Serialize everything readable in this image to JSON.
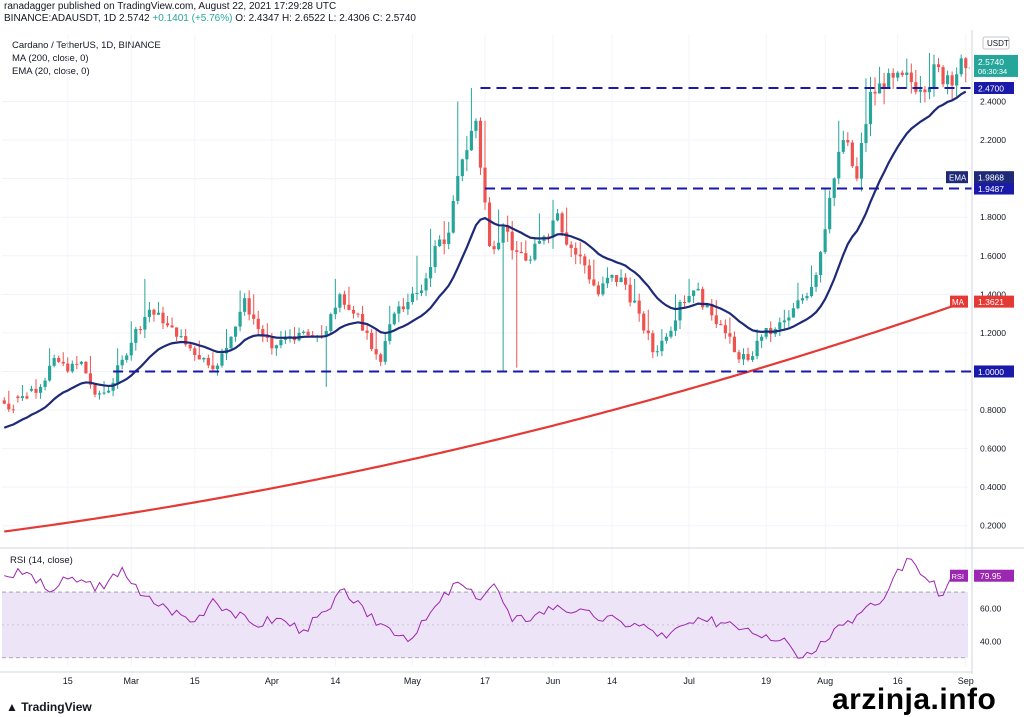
{
  "header": {
    "published": "ranadagger published on TradingView.com, August 22, 2021 17:29:28 UTC",
    "symbol": "BINANCE:ADAUSDT, 1D",
    "price": "2.5742",
    "change": "+0.1401 (+5.76%)",
    "open": "O: 2.4347",
    "high": "H: 2.6522",
    "low": "L: 2.4306",
    "close": "C: 2.5740"
  },
  "legend": {
    "title": "Cardano / TetherUS, 1D, BINANCE",
    "ma": "MA (200, close, 0)",
    "ema": "EMA (20, close, 0)",
    "rsi": "RSI (14, close)"
  },
  "branding": {
    "logo": "TradingView",
    "watermark": "arzinja.info"
  },
  "colors": {
    "up": "#26a69a",
    "down": "#ef5350",
    "ema": "#1e2a78",
    "ma": "#e53935",
    "level_line": "#1a1aaa",
    "rsi": "#9c27b0",
    "rsi_band": "#ede4f7"
  },
  "chart_data": [
    {
      "type": "candlestick",
      "title": "Cardano / TetherUS, 1D, BINANCE",
      "currency": "USDT",
      "ylim": [
        0.1,
        2.75
      ],
      "y_ticks": [
        0.2,
        0.4,
        0.6,
        0.8,
        1.0,
        1.2,
        1.4,
        1.6,
        1.8,
        2.0,
        2.2,
        2.4
      ],
      "y_tick_labels": [
        "0.2000",
        "0.4000",
        "0.6000",
        "0.8000",
        "1.0000",
        "1.2000",
        "1.4000",
        "1.6000",
        "1.8000",
        "2.0000",
        "2.2000",
        "2.4000"
      ],
      "x_tick_labels": [
        "15",
        "Mar",
        "15",
        "Apr",
        "14",
        "May",
        "17",
        "Jun",
        "14",
        "Jul",
        "19",
        "Aug",
        "16",
        "Sep"
      ],
      "x_tick_days": [
        14,
        28,
        42,
        59,
        73,
        90,
        106,
        121,
        134,
        151,
        168,
        181,
        197,
        212
      ],
      "price_label": {
        "value": "2.5740",
        "countdown": "06:30:34"
      },
      "levels": [
        {
          "price": 2.47,
          "label": "2.4700",
          "from_day": 105
        },
        {
          "price": 1.9487,
          "label": "1.9487",
          "from_day": 106
        },
        {
          "price": 1.0,
          "label": "1.0000",
          "from_day": 24
        }
      ],
      "ema20_last": {
        "label": "EMA",
        "value": "1.9868"
      },
      "ma200_last": {
        "label": "MA",
        "value": "1.3621"
      },
      "ohlc_anchors": [
        [
          0.85,
          0.8,
          0.9
        ],
        [
          0.87,
          0.86,
          0.93
        ],
        [
          0.9,
          0.92,
          0.96
        ],
        [
          0.92,
          1.07,
          1.12
        ],
        [
          1.07,
          1.0,
          1.1
        ],
        [
          1.0,
          1.05,
          1.08
        ],
        [
          1.05,
          0.88,
          1.08
        ],
        [
          0.88,
          0.9,
          0.95
        ],
        [
          0.9,
          1.06,
          1.12
        ],
        [
          1.06,
          1.22,
          1.26
        ],
        [
          1.22,
          1.32,
          1.48
        ],
        [
          1.32,
          1.25,
          1.36
        ],
        [
          1.25,
          1.18,
          1.28
        ],
        [
          1.18,
          1.12,
          1.22
        ],
        [
          1.12,
          1.07,
          1.16
        ],
        [
          1.07,
          1.03,
          1.1
        ],
        [
          1.03,
          1.18,
          1.22
        ],
        [
          1.18,
          1.38,
          1.42
        ],
        [
          1.38,
          1.22,
          1.4
        ],
        [
          1.22,
          1.12,
          1.25
        ],
        [
          1.12,
          1.18,
          1.21
        ],
        [
          1.18,
          1.2,
          1.23
        ],
        [
          1.2,
          1.18,
          1.22
        ],
        [
          1.18,
          1.21,
          1.24
        ],
        [
          1.21,
          1.4,
          1.48
        ],
        [
          1.4,
          1.3,
          1.44
        ],
        [
          1.3,
          1.2,
          1.34
        ],
        [
          1.2,
          1.05,
          1.22
        ],
        [
          1.05,
          1.3,
          1.34
        ],
        [
          1.3,
          1.36,
          1.38
        ],
        [
          1.36,
          1.42,
          1.6
        ],
        [
          1.42,
          1.65,
          1.74
        ],
        [
          1.65,
          1.72,
          1.78
        ],
        [
          1.72,
          2.1,
          2.4
        ],
        [
          2.1,
          2.3,
          2.47
        ],
        [
          2.3,
          1.65,
          2.3
        ],
        [
          1.65,
          1.75,
          1.84
        ],
        [
          1.75,
          1.62,
          1.78
        ],
        [
          1.62,
          1.58,
          1.68
        ],
        [
          1.58,
          1.7,
          1.82
        ],
        [
          1.7,
          1.82,
          1.89
        ],
        [
          1.82,
          1.64,
          1.85
        ],
        [
          1.64,
          1.55,
          1.67
        ],
        [
          1.55,
          1.4,
          1.58
        ],
        [
          1.4,
          1.5,
          1.54
        ],
        [
          1.5,
          1.45,
          1.53
        ],
        [
          1.45,
          1.3,
          1.48
        ],
        [
          1.3,
          1.1,
          1.32
        ],
        [
          1.1,
          1.18,
          1.22
        ],
        [
          1.18,
          1.36,
          1.4
        ],
        [
          1.36,
          1.42,
          1.48
        ],
        [
          1.42,
          1.35,
          1.44
        ],
        [
          1.35,
          1.24,
          1.37
        ],
        [
          1.24,
          1.1,
          1.28
        ],
        [
          1.1,
          1.06,
          1.12
        ],
        [
          1.06,
          1.18,
          1.22
        ],
        [
          1.18,
          1.22,
          1.25
        ],
        [
          1.22,
          1.28,
          1.32
        ],
        [
          1.28,
          1.38,
          1.46
        ],
        [
          1.38,
          1.5,
          1.55
        ],
        [
          1.5,
          1.9,
          1.95
        ],
        [
          1.9,
          2.2,
          2.3
        ],
        [
          2.2,
          2.0,
          2.2
        ],
        [
          2.0,
          2.45,
          2.52
        ],
        [
          2.45,
          2.47,
          2.58
        ],
        [
          2.47,
          2.574,
          2.652
        ]
      ]
    },
    {
      "type": "line",
      "title": "RSI (14, close)",
      "ylim": [
        25,
        95
      ],
      "y_ticks": [
        40,
        60
      ],
      "y_tick_labels": [
        "40.00",
        "60.00"
      ],
      "band": [
        30,
        70
      ],
      "midline": 50,
      "last_value": "79.95",
      "anchors": [
        [
          0,
          80
        ],
        [
          5,
          82
        ],
        [
          10,
          70
        ],
        [
          14,
          78
        ],
        [
          18,
          76
        ],
        [
          22,
          72
        ],
        [
          26,
          85
        ],
        [
          30,
          68
        ],
        [
          36,
          60
        ],
        [
          42,
          52
        ],
        [
          46,
          66
        ],
        [
          50,
          58
        ],
        [
          55,
          50
        ],
        [
          60,
          54
        ],
        [
          66,
          47
        ],
        [
          72,
          60
        ],
        [
          75,
          72
        ],
        [
          80,
          55
        ],
        [
          85,
          48
        ],
        [
          90,
          42
        ],
        [
          96,
          64
        ],
        [
          100,
          76
        ],
        [
          104,
          66
        ],
        [
          108,
          75
        ],
        [
          112,
          52
        ],
        [
          117,
          56
        ],
        [
          122,
          62
        ],
        [
          126,
          58
        ],
        [
          130,
          55
        ],
        [
          136,
          52
        ],
        [
          142,
          48
        ],
        [
          146,
          42
        ],
        [
          150,
          50
        ],
        [
          155,
          52
        ],
        [
          160,
          52
        ],
        [
          164,
          48
        ],
        [
          168,
          44
        ],
        [
          172,
          42
        ],
        [
          176,
          30
        ],
        [
          180,
          40
        ],
        [
          184,
          50
        ],
        [
          188,
          56
        ],
        [
          192,
          62
        ],
        [
          194,
          66
        ],
        [
          197,
          84
        ],
        [
          200,
          90
        ],
        [
          204,
          76
        ],
        [
          207,
          68
        ],
        [
          209,
          80
        ]
      ]
    }
  ]
}
